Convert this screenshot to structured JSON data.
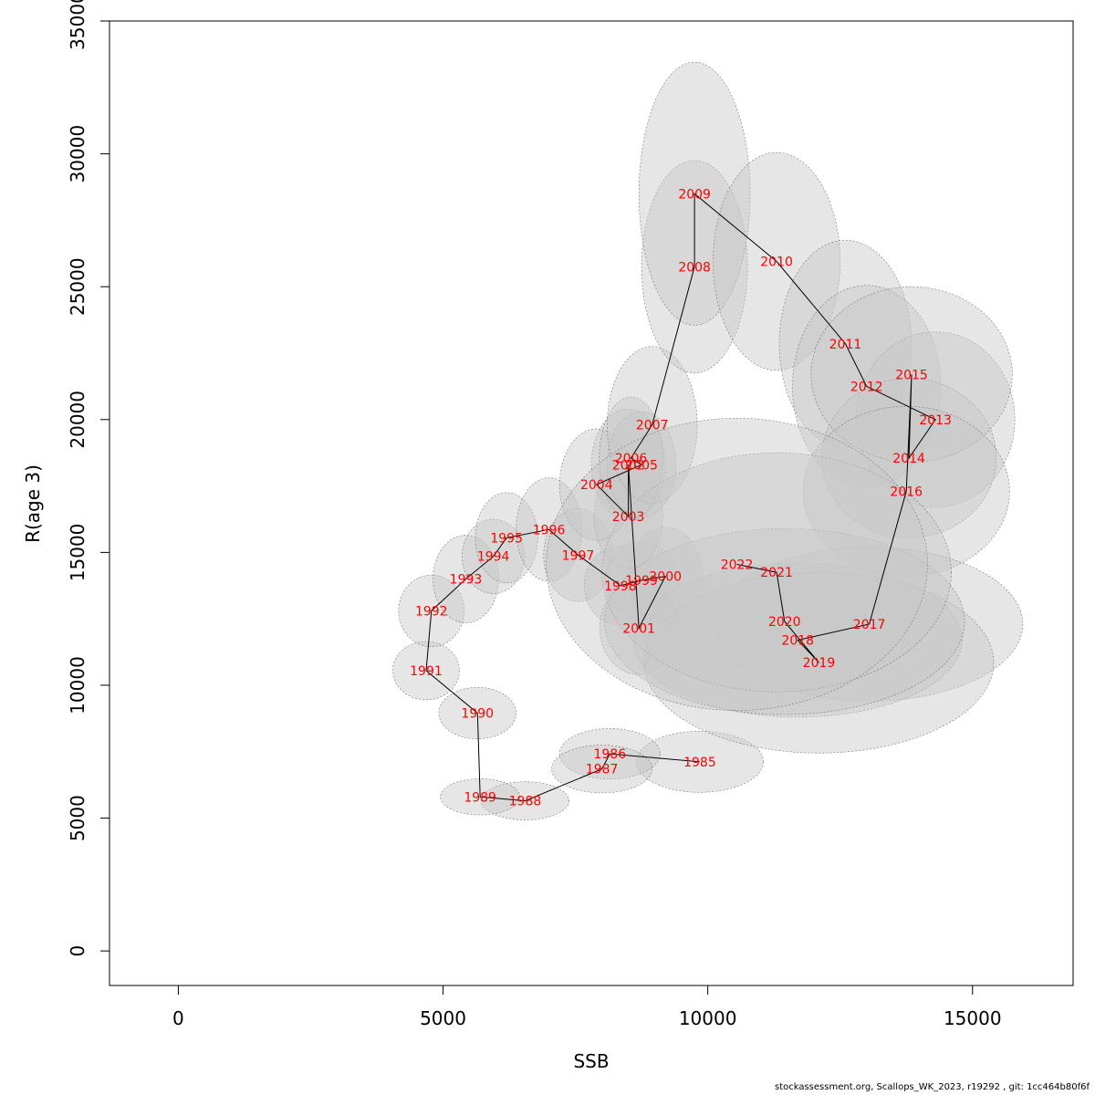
{
  "chart_data": {
    "type": "scatter",
    "xlabel": "SSB",
    "ylabel": "R(age 3)",
    "xlim": [
      -1300,
      16900
    ],
    "ylim": [
      -1300,
      35000
    ],
    "xticks": [
      0,
      5000,
      10000,
      15000
    ],
    "yticks": [
      0,
      5000,
      10000,
      15000,
      20000,
      25000,
      30000,
      35000
    ],
    "connected": true,
    "ellipse_color": "#c8c8c8",
    "line_color": "#000000",
    "label_color": "#ff0000",
    "points": [
      {
        "year": "1985",
        "ssb": 9850,
        "r": 7120,
        "sd_ssb": 1200,
        "sd_r": 1150
      },
      {
        "year": "1986",
        "ssb": 8150,
        "r": 7420,
        "sd_ssb": 950,
        "sd_r": 950
      },
      {
        "year": "1987",
        "ssb": 8000,
        "r": 6850,
        "sd_ssb": 950,
        "sd_r": 900
      },
      {
        "year": "1988",
        "ssb": 6550,
        "r": 5650,
        "sd_ssb": 830,
        "sd_r": 720
      },
      {
        "year": "1989",
        "ssb": 5700,
        "r": 5800,
        "sd_ssb": 750,
        "sd_r": 680
      },
      {
        "year": "1990",
        "ssb": 5650,
        "r": 8950,
        "sd_ssb": 730,
        "sd_r": 970
      },
      {
        "year": "1991",
        "ssb": 4680,
        "r": 10550,
        "sd_ssb": 630,
        "sd_r": 1100
      },
      {
        "year": "1992",
        "ssb": 4780,
        "r": 12800,
        "sd_ssb": 620,
        "sd_r": 1350
      },
      {
        "year": "1993",
        "ssb": 5430,
        "r": 14000,
        "sd_ssb": 620,
        "sd_r": 1650
      },
      {
        "year": "1994",
        "ssb": 5950,
        "r": 14850,
        "sd_ssb": 590,
        "sd_r": 1400
      },
      {
        "year": "1995",
        "ssb": 6200,
        "r": 15550,
        "sd_ssb": 590,
        "sd_r": 1700
      },
      {
        "year": "1996",
        "ssb": 7000,
        "r": 15860,
        "sd_ssb": 620,
        "sd_r": 1950
      },
      {
        "year": "1997",
        "ssb": 7550,
        "r": 14900,
        "sd_ssb": 650,
        "sd_r": 1750
      },
      {
        "year": "1998",
        "ssb": 8350,
        "r": 13750,
        "sd_ssb": 680,
        "sd_r": 1500
      },
      {
        "year": "1999",
        "ssb": 8750,
        "r": 13950,
        "sd_ssb": 680,
        "sd_r": 1450
      },
      {
        "year": "2000",
        "ssb": 9200,
        "r": 14100,
        "sd_ssb": 700,
        "sd_r": 1850
      },
      {
        "year": "2001",
        "ssb": 8700,
        "r": 12150,
        "sd_ssb": 740,
        "sd_r": 1750
      },
      {
        "year": "2002",
        "ssb": 8500,
        "r": 18300,
        "sd_ssb": 700,
        "sd_r": 2100
      },
      {
        "year": "2003",
        "ssb": 8500,
        "r": 16350,
        "sd_ssb": 650,
        "sd_r": 1950
      },
      {
        "year": "2004",
        "ssb": 7900,
        "r": 17550,
        "sd_ssb": 700,
        "sd_r": 2100
      },
      {
        "year": "2005",
        "ssb": 8750,
        "r": 18300,
        "sd_ssb": 650,
        "sd_r": 2000
      },
      {
        "year": "2006",
        "ssb": 8550,
        "r": 18550,
        "sd_ssb": 600,
        "sd_r": 2300
      },
      {
        "year": "2007",
        "ssb": 8950,
        "r": 19800,
        "sd_ssb": 850,
        "sd_r": 2950
      },
      {
        "year": "2008",
        "ssb": 9750,
        "r": 25750,
        "sd_ssb": 1000,
        "sd_r": 4000
      },
      {
        "year": "2009",
        "ssb": 9750,
        "r": 28500,
        "sd_ssb": 1050,
        "sd_r": 4950
      },
      {
        "year": "2010",
        "ssb": 11300,
        "r": 25950,
        "sd_ssb": 1200,
        "sd_r": 4100
      },
      {
        "year": "2011",
        "ssb": 12600,
        "r": 22850,
        "sd_ssb": 1250,
        "sd_r": 3900
      },
      {
        "year": "2012",
        "ssb": 13000,
        "r": 21250,
        "sd_ssb": 1400,
        "sd_r": 3800
      },
      {
        "year": "2013",
        "ssb": 14300,
        "r": 20000,
        "sd_ssb": 1500,
        "sd_r": 3300
      },
      {
        "year": "2014",
        "ssb": 13800,
        "r": 18550,
        "sd_ssb": 1650,
        "sd_r": 3000
      },
      {
        "year": "2015",
        "ssb": 13850,
        "r": 21700,
        "sd_ssb": 1900,
        "sd_r": 3300
      },
      {
        "year": "2016",
        "ssb": 13750,
        "r": 17300,
        "sd_ssb": 1950,
        "sd_r": 3200
      },
      {
        "year": "2017",
        "ssb": 13050,
        "r": 12300,
        "sd_ssb": 2900,
        "sd_r": 2900
      },
      {
        "year": "2018",
        "ssb": 11700,
        "r": 11700,
        "sd_ssb": 3100,
        "sd_r": 2900
      },
      {
        "year": "2019",
        "ssb": 12100,
        "r": 10850,
        "sd_ssb": 3300,
        "sd_r": 3400
      },
      {
        "year": "2020",
        "ssb": 11450,
        "r": 12400,
        "sd_ssb": 3400,
        "sd_r": 3500
      },
      {
        "year": "2021",
        "ssb": 11300,
        "r": 14250,
        "sd_ssb": 3300,
        "sd_r": 4500
      },
      {
        "year": "2022",
        "ssb": 10550,
        "r": 14550,
        "sd_ssb": 3600,
        "sd_r": 5500
      }
    ]
  },
  "footer": "stockassessment.org, Scallops_WK_2023, r19292 , git: 1cc464b80f6f"
}
